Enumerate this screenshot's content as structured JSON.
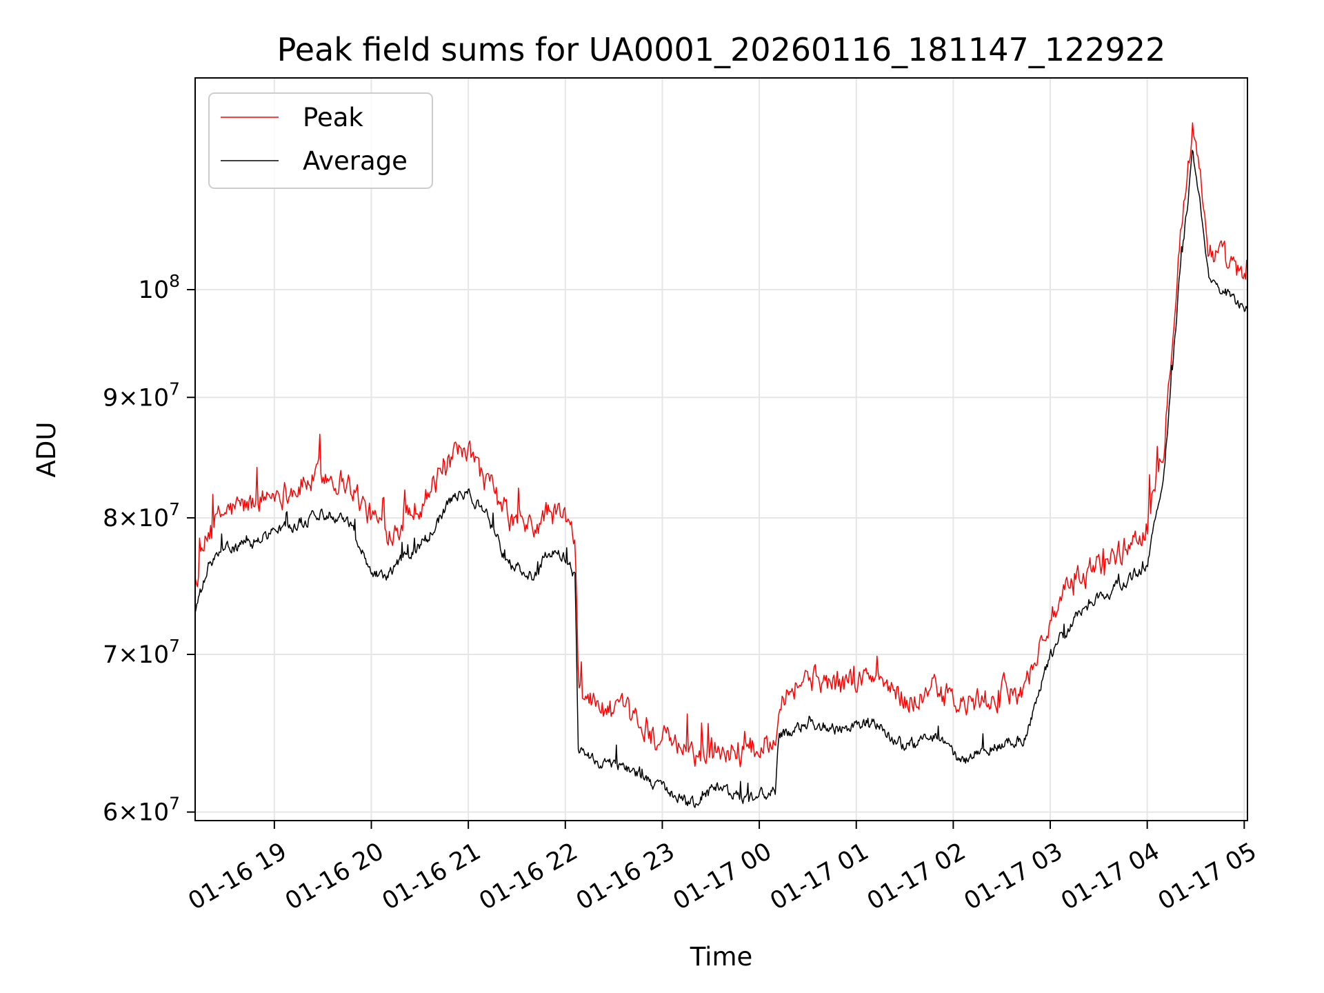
{
  "chart_data": {
    "type": "line",
    "title": "Peak field sums for UA0001_20260116_181147_122922",
    "xlabel": "Time",
    "ylabel": "ADU",
    "y_scale": "log",
    "ylim": [
      59500000,
      123000000
    ],
    "xlim": [
      "2026-01-16 18:11",
      "2026-01-17 05:02"
    ],
    "grid": true,
    "legend": "top-left",
    "x_ticks": [
      {
        "value": "2026-01-16 19:00",
        "label": "01-16 19"
      },
      {
        "value": "2026-01-16 20:00",
        "label": "01-16 20"
      },
      {
        "value": "2026-01-16 21:00",
        "label": "01-16 21"
      },
      {
        "value": "2026-01-16 22:00",
        "label": "01-16 22"
      },
      {
        "value": "2026-01-16 23:00",
        "label": "01-16 23"
      },
      {
        "value": "2026-01-17 00:00",
        "label": "01-17 00"
      },
      {
        "value": "2026-01-17 01:00",
        "label": "01-17 01"
      },
      {
        "value": "2026-01-17 02:00",
        "label": "01-17 02"
      },
      {
        "value": "2026-01-17 03:00",
        "label": "01-17 03"
      },
      {
        "value": "2026-01-17 04:00",
        "label": "01-17 04"
      },
      {
        "value": "2026-01-17 05:00",
        "label": "01-17 05"
      }
    ],
    "y_ticks": [
      {
        "value": 60000000,
        "mantissa": "6",
        "exponent": "7"
      },
      {
        "value": 70000000,
        "mantissa": "7",
        "exponent": "7"
      },
      {
        "value": 80000000,
        "mantissa": "8",
        "exponent": "7"
      },
      {
        "value": 90000000,
        "mantissa": "9",
        "exponent": "7"
      },
      {
        "value": 100000000,
        "mantissa": "",
        "exponent": "8"
      }
    ],
    "series": [
      {
        "name": "Peak",
        "color": "#ff0000",
        "points": [
          [
            "2026-01-16 18:11",
            75000000
          ],
          [
            "2026-01-16 18:20",
            79000000
          ],
          [
            "2026-01-16 18:30",
            80500000
          ],
          [
            "2026-01-16 18:45",
            81000000
          ],
          [
            "2026-01-16 19:00",
            82000000
          ],
          [
            "2026-01-16 19:15",
            82500000
          ],
          [
            "2026-01-16 19:30",
            83500000
          ],
          [
            "2026-01-16 19:45",
            83000000
          ],
          [
            "2026-01-16 20:00",
            80000000
          ],
          [
            "2026-01-16 20:10",
            79000000
          ],
          [
            "2026-01-16 20:20",
            80000000
          ],
          [
            "2026-01-16 20:35",
            82000000
          ],
          [
            "2026-01-16 20:50",
            84500000
          ],
          [
            "2026-01-16 21:00",
            85000000
          ],
          [
            "2026-01-16 21:10",
            83000000
          ],
          [
            "2026-01-16 21:25",
            80000000
          ],
          [
            "2026-01-16 21:40",
            79000000
          ],
          [
            "2026-01-16 21:50",
            80500000
          ],
          [
            "2026-01-16 22:00",
            80000000
          ],
          [
            "2026-01-16 22:06",
            78000000
          ],
          [
            "2026-01-16 22:08",
            68000000
          ],
          [
            "2026-01-16 22:20",
            66500000
          ],
          [
            "2026-01-16 22:35",
            66000000
          ],
          [
            "2026-01-16 22:50",
            65000000
          ],
          [
            "2026-01-16 23:05",
            64000000
          ],
          [
            "2026-01-16 23:20",
            63500000
          ],
          [
            "2026-01-16 23:35",
            64000000
          ],
          [
            "2026-01-16 23:50",
            63500000
          ],
          [
            "2026-01-17 00:10",
            64500000
          ],
          [
            "2026-01-17 00:12",
            67500000
          ],
          [
            "2026-01-17 00:30",
            68500000
          ],
          [
            "2026-01-17 00:50",
            68000000
          ],
          [
            "2026-01-17 01:10",
            68500000
          ],
          [
            "2026-01-17 01:30",
            67000000
          ],
          [
            "2026-01-17 01:50",
            67500000
          ],
          [
            "2026-01-17 02:05",
            66500000
          ],
          [
            "2026-01-17 02:25",
            67000000
          ],
          [
            "2026-01-17 02:45",
            68000000
          ],
          [
            "2026-01-17 03:00",
            72500000
          ],
          [
            "2026-01-17 03:15",
            75000000
          ],
          [
            "2026-01-17 03:30",
            76500000
          ],
          [
            "2026-01-17 03:45",
            77500000
          ],
          [
            "2026-01-17 04:00",
            79500000
          ],
          [
            "2026-01-17 04:10",
            86000000
          ],
          [
            "2026-01-17 04:20",
            105000000
          ],
          [
            "2026-01-17 04:28",
            117000000
          ],
          [
            "2026-01-17 04:33",
            112000000
          ],
          [
            "2026-01-17 04:38",
            104000000
          ],
          [
            "2026-01-17 04:50",
            102500000
          ],
          [
            "2026-01-17 05:02",
            100500000
          ]
        ]
      },
      {
        "name": "Average",
        "color": "#000000",
        "points": [
          [
            "2026-01-16 18:11",
            73000000
          ],
          [
            "2026-01-16 18:20",
            76500000
          ],
          [
            "2026-01-16 18:30",
            77500000
          ],
          [
            "2026-01-16 18:45",
            78000000
          ],
          [
            "2026-01-16 19:00",
            79000000
          ],
          [
            "2026-01-16 19:15",
            79500000
          ],
          [
            "2026-01-16 19:30",
            80500000
          ],
          [
            "2026-01-16 19:45",
            80000000
          ],
          [
            "2026-01-16 20:00",
            76000000
          ],
          [
            "2026-01-16 20:10",
            75500000
          ],
          [
            "2026-01-16 20:20",
            77000000
          ],
          [
            "2026-01-16 20:35",
            78500000
          ],
          [
            "2026-01-16 20:50",
            81500000
          ],
          [
            "2026-01-16 21:00",
            82000000
          ],
          [
            "2026-01-16 21:10",
            80500000
          ],
          [
            "2026-01-16 21:25",
            76500000
          ],
          [
            "2026-01-16 21:40",
            75500000
          ],
          [
            "2026-01-16 21:50",
            77500000
          ],
          [
            "2026-01-16 22:00",
            77000000
          ],
          [
            "2026-01-16 22:06",
            75500000
          ],
          [
            "2026-01-16 22:08",
            64000000
          ],
          [
            "2026-01-16 22:20",
            63000000
          ],
          [
            "2026-01-16 22:35",
            62800000
          ],
          [
            "2026-01-16 22:50",
            62000000
          ],
          [
            "2026-01-16 23:05",
            61000000
          ],
          [
            "2026-01-16 23:20",
            60500000
          ],
          [
            "2026-01-16 23:35",
            61500000
          ],
          [
            "2026-01-16 23:50",
            60800000
          ],
          [
            "2026-01-17 00:10",
            61200000
          ],
          [
            "2026-01-17 00:12",
            64500000
          ],
          [
            "2026-01-17 00:30",
            65500000
          ],
          [
            "2026-01-17 00:50",
            65000000
          ],
          [
            "2026-01-17 01:10",
            65500000
          ],
          [
            "2026-01-17 01:30",
            64000000
          ],
          [
            "2026-01-17 01:50",
            64500000
          ],
          [
            "2026-01-17 02:05",
            63000000
          ],
          [
            "2026-01-17 02:25",
            64000000
          ],
          [
            "2026-01-17 02:45",
            64500000
          ],
          [
            "2026-01-17 03:00",
            70000000
          ],
          [
            "2026-01-17 03:15",
            72500000
          ],
          [
            "2026-01-17 03:30",
            74000000
          ],
          [
            "2026-01-17 03:45",
            75000000
          ],
          [
            "2026-01-17 04:00",
            76500000
          ],
          [
            "2026-01-17 04:10",
            83000000
          ],
          [
            "2026-01-17 04:20",
            101000000
          ],
          [
            "2026-01-17 04:28",
            114000000
          ],
          [
            "2026-01-17 04:33",
            108000000
          ],
          [
            "2026-01-17 04:38",
            101000000
          ],
          [
            "2026-01-17 04:50",
            99500000
          ],
          [
            "2026-01-17 05:02",
            98000000
          ]
        ]
      }
    ]
  }
}
